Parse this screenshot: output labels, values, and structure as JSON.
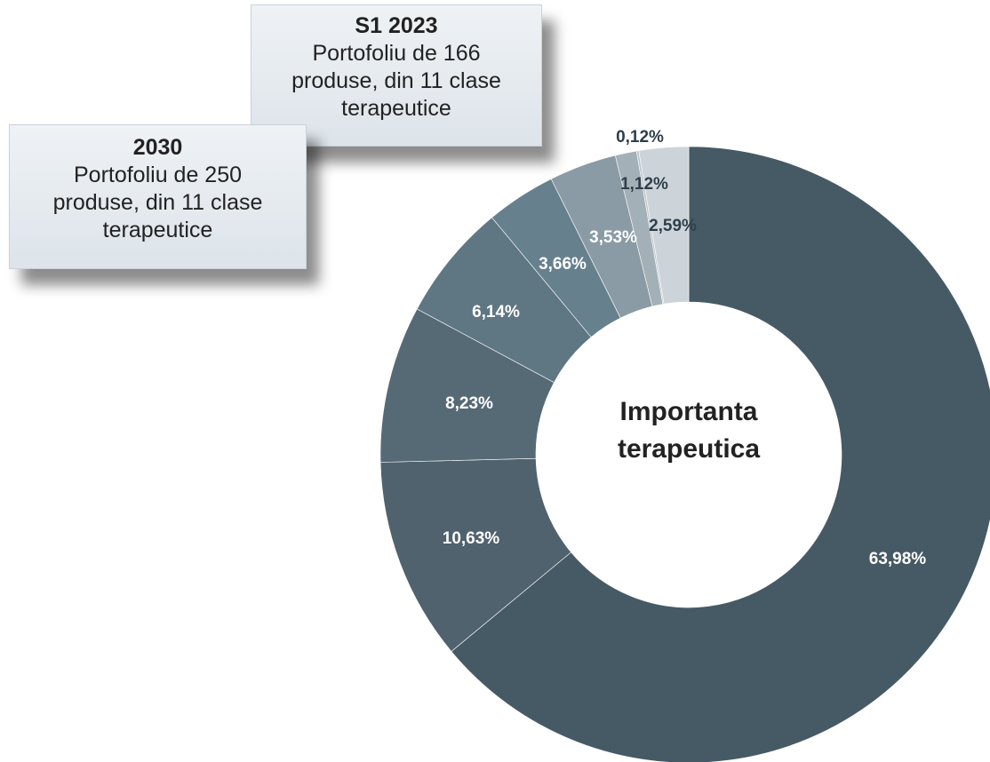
{
  "chart_data": {
    "type": "donut",
    "center_label": [
      "Importanta",
      "terapeutica"
    ],
    "values": [
      63.98,
      10.63,
      8.23,
      6.14,
      3.66,
      3.53,
      1.12,
      0.12,
      2.59
    ],
    "value_labels": [
      "63,98%",
      "10,63%",
      "8,23%",
      "6,14%",
      "3,66%",
      "3,53%",
      "1,12%",
      "0,12%",
      "2,59%"
    ],
    "colors": [
      "#465a65",
      "#4f626d",
      "#566a76",
      "#5f7683",
      "#66808e",
      "#8a9ba5",
      "#a3b0b8",
      "#bcc6cc",
      "#cdd4d9"
    ]
  },
  "boxes": [
    {
      "title": "S1 2023",
      "lines": [
        "Portofoliu de 166",
        "produse, din 11 clase",
        "terapeutice"
      ]
    },
    {
      "title": "2030",
      "lines": [
        "Portofoliu de 250",
        "produse, din 11 clase",
        "terapeutice"
      ]
    }
  ]
}
